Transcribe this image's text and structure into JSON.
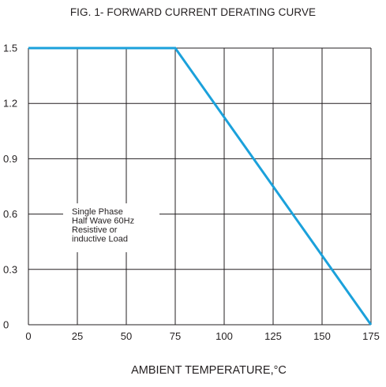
{
  "chart_data": {
    "type": "line",
    "title": "FIG. 1- FORWARD CURRENT DERATING CURVE",
    "xlabel": "AMBIENT TEMPERATURE,°C",
    "ylabel": "",
    "x_ticks": [
      "0",
      "25",
      "50",
      "75",
      "100",
      "125",
      "150",
      "175"
    ],
    "y_ticks": [
      "1.5",
      "1.2",
      "0.9",
      "0.6",
      "0.3",
      "0"
    ],
    "xlim": [
      0,
      175
    ],
    "ylim": [
      0,
      1.5
    ],
    "grid": true,
    "series": [
      {
        "x": [
          0,
          75,
          175
        ],
        "y": [
          1.5,
          1.5,
          0
        ]
      }
    ],
    "annotation": [
      "Single Phase",
      "Half Wave 60Hz",
      "Resistive or",
      "inductive Load"
    ],
    "colors": {
      "line": "#1ba1db",
      "grid": "#231f20"
    }
  }
}
